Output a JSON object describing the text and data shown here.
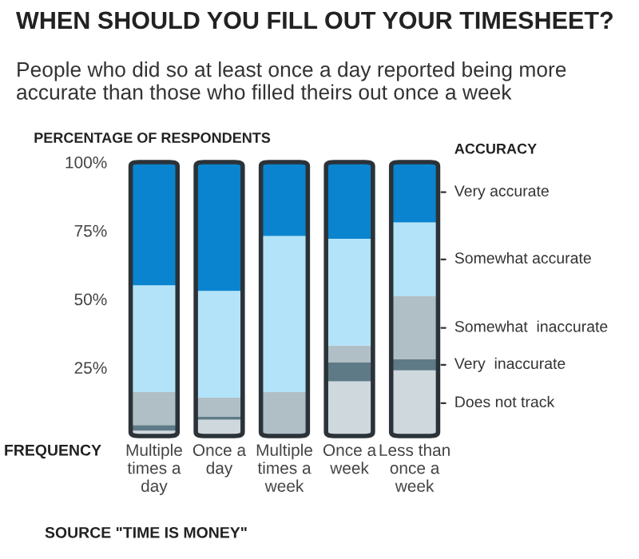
{
  "chart_data": {
    "type": "bar",
    "stacked": true,
    "title": "WHEN SHOULD YOU FILL OUT YOUR TIMESHEET?",
    "subtitle": "People who did so at least once a day reported being more accurate than those who filled theirs out once a week",
    "ylabel": "PERCENTAGE OF RESPONDENTS",
    "xlabel": "FREQUENCY",
    "legend_title": "ACCURACY",
    "categories": [
      "Multiple times a day",
      "Once a day",
      "Multiple times a week",
      "Once a week",
      "Less than once a week"
    ],
    "series": [
      {
        "name": "Does not track",
        "color": "#cfd8dd",
        "values": [
          2,
          6,
          0,
          20,
          24
        ]
      },
      {
        "name": "Very  inaccurate",
        "color": "#5f7a87",
        "values": [
          2,
          1,
          0,
          7,
          4
        ]
      },
      {
        "name": "Somewhat  inaccurate",
        "color": "#b0bec5",
        "values": [
          12,
          7,
          16,
          6,
          23
        ]
      },
      {
        "name": "Somewhat accurate",
        "color": "#b3e3f8",
        "values": [
          39,
          39,
          57,
          39,
          27
        ]
      },
      {
        "name": "Very accurate",
        "color": "#0a84cf",
        "values": [
          45,
          47,
          27,
          28,
          22
        ]
      }
    ],
    "ylim": [
      0,
      100
    ],
    "yticks": [
      {
        "value": 25,
        "label": "25%"
      },
      {
        "value": 50,
        "label": "50%"
      },
      {
        "value": 75,
        "label": "75%"
      },
      {
        "value": 100,
        "label": "100%"
      }
    ],
    "grid": false,
    "legend": "right",
    "annotations": [
      "SOURCE \"TIME IS MONEY\""
    ]
  }
}
